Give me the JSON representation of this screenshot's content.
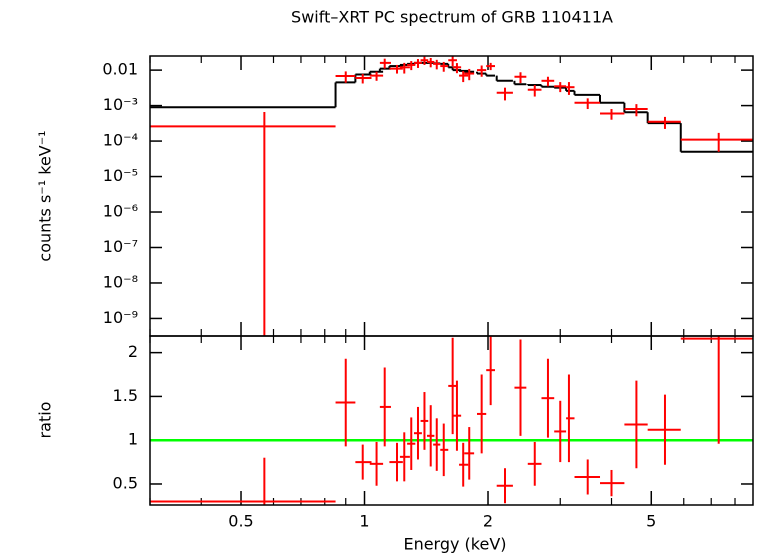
{
  "chart_data": {
    "type": "spectrum",
    "title": "Swift–XRT PC spectrum of GRB 110411A",
    "xlabel": "Energy (keV)",
    "xlog": true,
    "xlim": [
      0.3,
      8.85
    ],
    "xticks": [
      0.5,
      1,
      2,
      5
    ],
    "xminorticks": [
      0.3,
      0.4,
      0.6,
      0.7,
      0.8,
      0.9,
      3,
      4,
      6,
      7,
      8
    ],
    "x_lo": [
      0.3,
      0.85,
      0.95,
      1.03,
      1.09,
      1.15,
      1.22,
      1.27,
      1.32,
      1.37,
      1.42,
      1.47,
      1.53,
      1.6,
      1.64,
      1.7,
      1.75,
      1.88,
      1.98,
      2.1,
      2.32,
      2.5,
      2.7,
      2.9,
      3.1,
      3.25,
      3.75,
      4.3,
      4.9,
      5.9
    ],
    "x": [
      0.57,
      0.9,
      0.99,
      1.07,
      1.12,
      1.2,
      1.25,
      1.3,
      1.35,
      1.4,
      1.45,
      1.5,
      1.56,
      1.64,
      1.68,
      1.74,
      1.8,
      1.93,
      2.03,
      2.2,
      2.4,
      2.6,
      2.8,
      3.0,
      3.15,
      3.5,
      4.0,
      4.6,
      5.4,
      7.3
    ],
    "x_hi": [
      0.85,
      0.95,
      1.04,
      1.11,
      1.16,
      1.24,
      1.29,
      1.33,
      1.38,
      1.43,
      1.48,
      1.53,
      1.6,
      1.68,
      1.72,
      1.79,
      1.85,
      1.98,
      2.08,
      2.3,
      2.48,
      2.7,
      2.9,
      3.1,
      3.25,
      3.75,
      4.3,
      4.9,
      5.9,
      8.85
    ],
    "panels": [
      {
        "ylabel": "counts s⁻¹ keV⁻¹",
        "ylog": true,
        "ylim": [
          3.2e-10,
          0.025
        ],
        "yticks": [
          {
            "value": 1e-09,
            "label": "10⁻⁹"
          },
          {
            "value": 1e-08,
            "label": "10⁻⁸"
          },
          {
            "value": 1e-07,
            "label": "10⁻⁷"
          },
          {
            "value": 1e-06,
            "label": "10⁻⁶"
          },
          {
            "value": 1e-05,
            "label": "10⁻⁵"
          },
          {
            "value": 0.0001,
            "label": "10⁻⁴"
          },
          {
            "value": 0.001,
            "label": "10⁻³"
          },
          0.01
        ],
        "data": {
          "color": "#ff0000",
          "values": [
            0.00026,
            0.0068,
            0.006,
            0.007,
            0.016,
            0.011,
            0.012,
            0.014,
            0.016,
            0.019,
            0.017,
            0.015,
            0.013,
            0.019,
            0.012,
            0.007,
            0.008,
            0.01,
            0.013,
            0.0023,
            0.0065,
            0.0028,
            0.005,
            0.0035,
            0.0033,
            0.0012,
            0.0006,
            0.0008,
            0.00035,
            0.00011
          ],
          "errors": [
            0.0004,
            0.0024,
            0.0018,
            0.002,
            0.005,
            0.003,
            0.004,
            0.004,
            0.0045,
            0.005,
            0.005,
            0.0045,
            0.004,
            0.006,
            0.0038,
            0.0024,
            0.0028,
            0.0035,
            0.003,
            0.0009,
            0.0022,
            0.001,
            0.0015,
            0.0011,
            0.0013,
            0.0004,
            0.0002,
            0.0003,
            0.00013,
            6e-05
          ]
        },
        "model": {
          "color": "#000000",
          "values": [
            0.0009,
            0.0045,
            0.0075,
            0.009,
            0.011,
            0.013,
            0.014,
            0.015,
            0.016,
            0.016,
            0.016,
            0.0155,
            0.015,
            0.012,
            0.01,
            0.0095,
            0.009,
            0.008,
            0.007,
            0.005,
            0.004,
            0.0038,
            0.0034,
            0.0032,
            0.0026,
            0.002,
            0.0012,
            0.00065,
            0.00032,
            5e-05
          ]
        }
      },
      {
        "ylabel": "ratio",
        "ylog": false,
        "ylim": [
          0.26,
          2.19
        ],
        "yticks": [
          0.5,
          1,
          1.5,
          2
        ],
        "reference": 1,
        "reference_color": "#00ff00",
        "data": {
          "color": "#ff0000",
          "values": [
            0.3,
            1.43,
            0.75,
            0.73,
            1.38,
            0.75,
            0.81,
            0.96,
            1.08,
            1.22,
            1.05,
            0.95,
            0.89,
            1.62,
            1.28,
            0.72,
            0.85,
            1.3,
            1.8,
            0.48,
            1.6,
            0.73,
            1.48,
            1.1,
            1.25,
            0.58,
            0.51,
            1.18,
            1.12,
            2.16
          ],
          "errors": [
            0.5,
            0.5,
            0.2,
            0.25,
            0.45,
            0.22,
            0.28,
            0.3,
            0.3,
            0.33,
            0.35,
            0.3,
            0.3,
            0.55,
            0.4,
            0.25,
            0.3,
            0.45,
            0.4,
            0.2,
            0.55,
            0.25,
            0.45,
            0.35,
            0.5,
            0.2,
            0.15,
            0.5,
            0.4,
            1.2
          ]
        }
      }
    ]
  }
}
